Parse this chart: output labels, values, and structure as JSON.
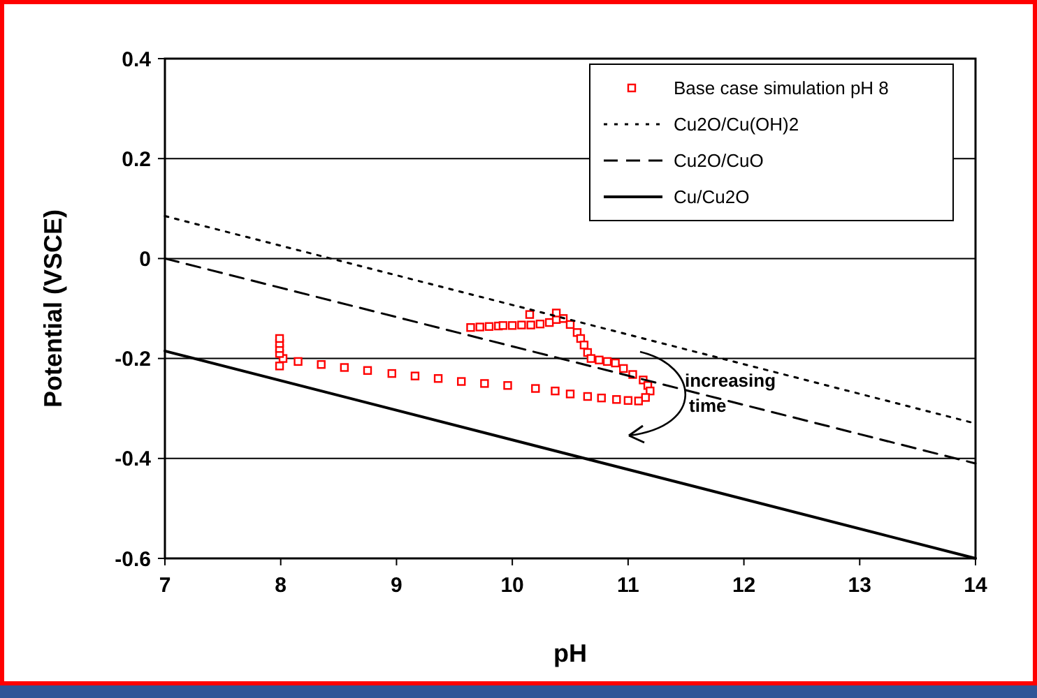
{
  "chart_data": {
    "type": "line",
    "xlabel": "pH",
    "ylabel": "Potential (VSCE)",
    "xlim": [
      7,
      14
    ],
    "ylim": [
      -0.6,
      0.4
    ],
    "xticks": [
      7,
      8,
      9,
      10,
      11,
      12,
      13,
      14
    ],
    "yticks": [
      {
        "value": -0.6,
        "label": "-0.6"
      },
      {
        "value": -0.4,
        "label": "-0.4"
      },
      {
        "value": -0.2,
        "label": "-0.2"
      },
      0,
      {
        "value": 0.2,
        "label": "0.2"
      },
      {
        "value": 0.4,
        "label": "0.4"
      }
    ],
    "grid": "y",
    "legend": "top right",
    "annotations": [
      "increasing time"
    ],
    "series": [
      {
        "name": "Base case simulation pH 8",
        "type": "scatter",
        "marker": "square",
        "color": "#ff0000",
        "x": [
          9.64,
          9.72,
          9.8,
          9.88,
          9.92,
          10.0,
          10.08,
          10.16,
          10.24,
          10.32,
          10.38,
          10.44,
          10.5,
          10.56,
          10.59,
          10.62,
          10.65,
          10.68,
          10.75,
          10.82,
          10.89,
          10.96,
          11.04,
          11.13,
          11.17,
          11.19,
          11.15,
          11.09,
          11.0,
          10.9,
          10.77,
          10.65,
          10.5,
          10.37,
          10.2,
          9.96,
          9.76,
          9.56,
          9.36,
          9.16,
          8.96,
          8.75,
          8.55,
          8.35,
          8.15,
          8.02,
          7.99,
          7.99,
          7.99,
          7.99,
          7.99,
          10.15,
          10.38
        ],
        "values": [
          -0.138,
          -0.137,
          -0.136,
          -0.135,
          -0.134,
          -0.134,
          -0.133,
          -0.133,
          -0.131,
          -0.128,
          -0.122,
          -0.12,
          -0.132,
          -0.148,
          -0.16,
          -0.173,
          -0.188,
          -0.2,
          -0.203,
          -0.206,
          -0.209,
          -0.22,
          -0.232,
          -0.243,
          -0.254,
          -0.265,
          -0.278,
          -0.285,
          -0.284,
          -0.282,
          -0.279,
          -0.276,
          -0.271,
          -0.265,
          -0.26,
          -0.254,
          -0.25,
          -0.246,
          -0.24,
          -0.235,
          -0.23,
          -0.224,
          -0.218,
          -0.212,
          -0.206,
          -0.2,
          -0.19,
          -0.18,
          -0.17,
          -0.16,
          -0.215,
          -0.112,
          -0.109
        ]
      },
      {
        "name": "Cu2O/Cu(OH)2",
        "color": "#000000",
        "line_style": "dotted",
        "marker": "none",
        "x": [
          7,
          14
        ],
        "values": [
          0.085,
          -0.33
        ]
      },
      {
        "name": "Cu2O/CuO",
        "color": "#000000",
        "line_style": "dashed",
        "marker": "none",
        "x": [
          7,
          14
        ],
        "values": [
          0.0,
          -0.41
        ]
      },
      {
        "name": "Cu/Cu2O",
        "color": "#000000",
        "line_style": "solid",
        "marker": "none",
        "x": [
          7,
          14
        ],
        "values": [
          -0.185,
          -0.6
        ]
      }
    ]
  }
}
